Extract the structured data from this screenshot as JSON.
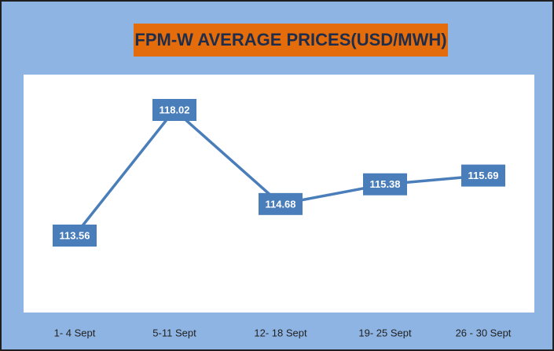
{
  "chart_data": {
    "type": "line",
    "title": "FPM-W AVERAGE PRICES(USD/MWH)",
    "categories": [
      "1- 4 Sept",
      "5-11 Sept",
      "12- 18 Sept",
      "19- 25 Sept",
      "26 - 30 Sept"
    ],
    "values": [
      113.56,
      118.02,
      114.68,
      115.38,
      115.69
    ],
    "color": "#4a7ebb"
  }
}
